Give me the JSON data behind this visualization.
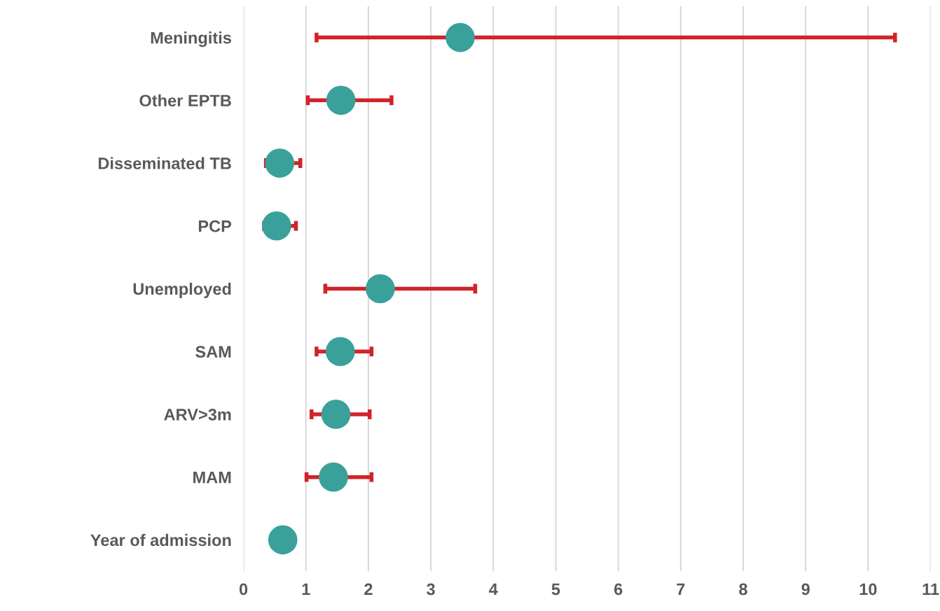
{
  "chart_data": {
    "type": "scatter",
    "orientation": "horizontal",
    "categories": [
      "Meningitis",
      "Other EPTB",
      "Disseminated TB",
      "PCP",
      "Unemployed",
      "SAM",
      "ARV>3m",
      "MAM",
      "Year of admission"
    ],
    "series": [
      {
        "color": "#3aa19a",
        "values": [
          3.47,
          1.56,
          0.58,
          0.53,
          2.19,
          1.55,
          1.48,
          1.44,
          0.63
        ],
        "errors": [
          [
            1.17,
            10.43
          ],
          [
            1.03,
            2.37
          ],
          [
            0.36,
            0.91
          ],
          [
            0.33,
            0.84
          ],
          [
            1.31,
            3.71
          ],
          [
            1.17,
            2.05
          ],
          [
            1.09,
            2.02
          ],
          [
            1.01,
            2.05
          ],
          null
        ]
      }
    ],
    "xlim": [
      0,
      11
    ],
    "xticks": [
      0,
      1,
      2,
      3,
      4,
      5,
      6,
      7,
      8,
      9,
      10,
      11
    ],
    "grid": "x",
    "marker": "circle",
    "legend": false
  }
}
